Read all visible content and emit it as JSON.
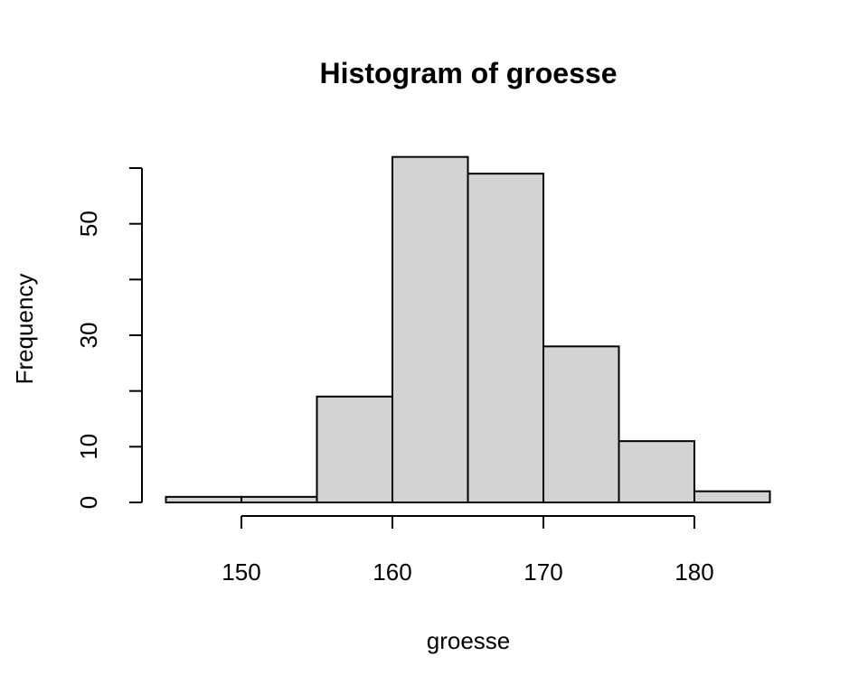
{
  "chart_data": {
    "type": "bar",
    "title": "Histogram of groesse",
    "xlabel": "groesse",
    "ylabel": "Frequency",
    "bins": [
      {
        "start": 145,
        "end": 150,
        "count": 1
      },
      {
        "start": 150,
        "end": 155,
        "count": 1
      },
      {
        "start": 155,
        "end": 160,
        "count": 19
      },
      {
        "start": 160,
        "end": 165,
        "count": 62
      },
      {
        "start": 165,
        "end": 170,
        "count": 59
      },
      {
        "start": 170,
        "end": 175,
        "count": 28
      },
      {
        "start": 175,
        "end": 180,
        "count": 11
      },
      {
        "start": 180,
        "end": 185,
        "count": 2
      }
    ],
    "x_ticks": [
      150,
      160,
      170,
      180
    ],
    "x_tick_labels": [
      "150",
      "160",
      "170",
      "180"
    ],
    "y_ticks": [
      0,
      10,
      20,
      30,
      40,
      50,
      60
    ],
    "y_tick_labels": [
      "0",
      "10",
      "",
      "30",
      "",
      "50",
      ""
    ],
    "xlim": [
      145,
      185
    ],
    "ylim": [
      0,
      60
    ],
    "grid": false,
    "bar_color": "#d3d3d3",
    "edge_color": "#000000"
  }
}
